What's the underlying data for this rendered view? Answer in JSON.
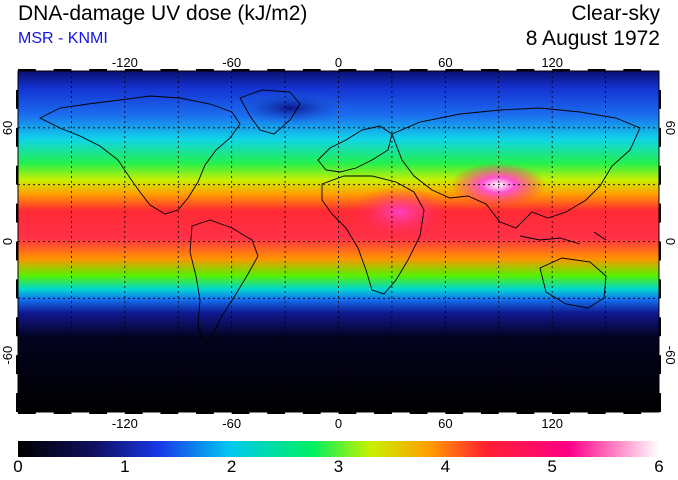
{
  "header": {
    "title": "DNA-damage UV dose (kJ/m2)",
    "source": "MSR - KNMI",
    "condition": "Clear-sky",
    "date": "8 August 1972"
  },
  "map": {
    "projection": "equirectangular",
    "lon_range": [
      -180,
      180
    ],
    "lat_range": [
      -90,
      90
    ],
    "longitude_ticks": [
      {
        "value": -120,
        "label": "-120"
      },
      {
        "value": -60,
        "label": "-60"
      },
      {
        "value": 0,
        "label": "0"
      },
      {
        "value": 60,
        "label": "60"
      },
      {
        "value": 120,
        "label": "120"
      }
    ],
    "latitude_ticks": [
      {
        "value": 60,
        "label": "60"
      },
      {
        "value": 0,
        "label": "0"
      },
      {
        "value": -60,
        "label": "-60"
      }
    ],
    "gridlines": "dashed every 30 degrees"
  },
  "colorbar": {
    "min": 0,
    "max": 6,
    "labels": [
      "0",
      "1",
      "2",
      "3",
      "4",
      "5",
      "6"
    ],
    "colors": [
      "#000000",
      "#101060",
      "#1838e8",
      "#00c8f0",
      "#00f060",
      "#c8f000",
      "#ffa000",
      "#ff2030",
      "#ff0088",
      "#ffffff"
    ]
  }
}
